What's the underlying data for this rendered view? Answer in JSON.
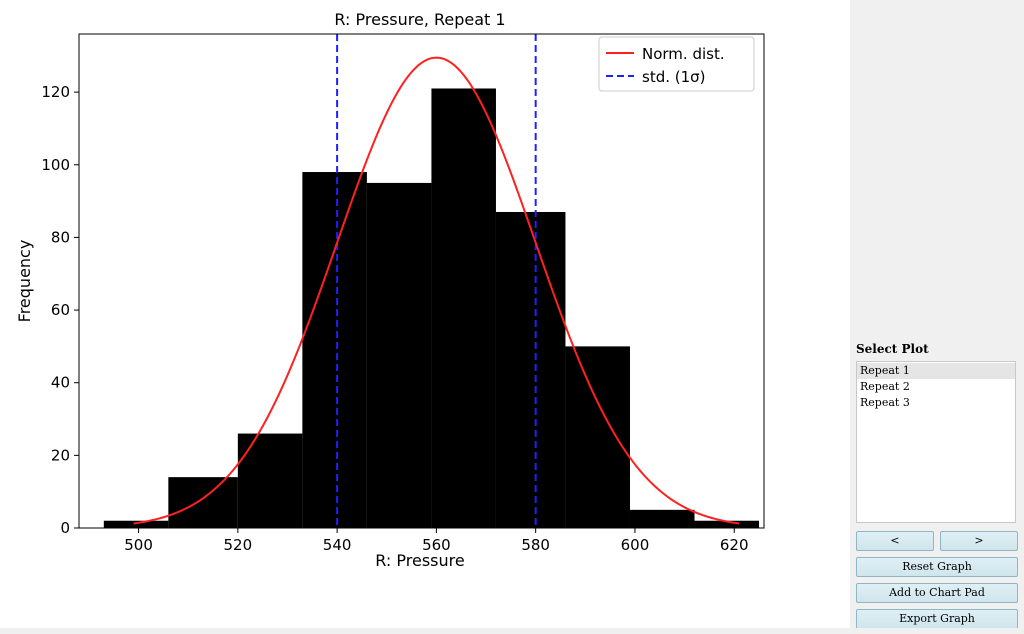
{
  "chart_data": {
    "type": "bar",
    "title": "R: Pressure, Repeat 1",
    "xlabel": "R: Pressure",
    "ylabel": "Frequency",
    "xlim": [
      488,
      626
    ],
    "ylim": [
      0,
      136
    ],
    "xticks": [
      500,
      520,
      540,
      560,
      580,
      600,
      620
    ],
    "yticks": [
      0,
      20,
      40,
      60,
      80,
      100,
      120
    ],
    "grid": false,
    "legend_position": "top-right",
    "histogram": {
      "color": "#000000",
      "bins": [
        {
          "x0": 493,
          "x1": 506,
          "value": 2
        },
        {
          "x0": 506,
          "x1": 520,
          "value": 14
        },
        {
          "x0": 520,
          "x1": 533,
          "value": 26
        },
        {
          "x0": 533,
          "x1": 546,
          "value": 98
        },
        {
          "x0": 546,
          "x1": 559,
          "value": 95
        },
        {
          "x0": 559,
          "x1": 572,
          "value": 121
        },
        {
          "x0": 572,
          "x1": 586,
          "value": 87
        },
        {
          "x0": 586,
          "x1": 599,
          "value": 50
        },
        {
          "x0": 599,
          "x1": 612,
          "value": 5
        },
        {
          "x0": 612,
          "x1": 625,
          "value": 2
        }
      ]
    },
    "normal_curve": {
      "name": "Norm. dist.",
      "color": "#ff2020",
      "mean": 560,
      "std": 20,
      "peak": 129.5,
      "x_range": [
        499,
        621
      ]
    },
    "std_lines": {
      "name": "std. (1σ)",
      "color": "#1f1fff",
      "x": [
        540,
        580
      ]
    },
    "legend": [
      {
        "label": "Norm. dist.",
        "style": "solid",
        "color": "#ff2020"
      },
      {
        "label": "std. (1σ)",
        "style": "dashed",
        "color": "#1f1fff"
      }
    ]
  },
  "panel": {
    "title": "Select Plot",
    "plots": [
      "Repeat 1",
      "Repeat 2",
      "Repeat 3"
    ],
    "selected": "Repeat 1",
    "buttons": {
      "prev": "<",
      "next": ">",
      "reset": "Reset Graph",
      "add": "Add to Chart Pad",
      "export": "Export Graph"
    }
  }
}
